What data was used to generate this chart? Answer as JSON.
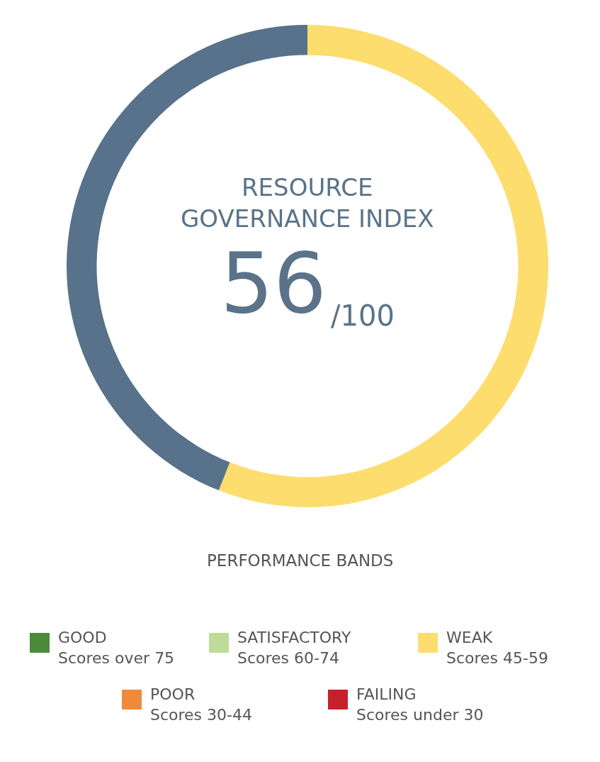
{
  "chart_data": {
    "type": "donut",
    "title": "RESOURCE\nGOVERNANCE INDEX",
    "annotations": [
      "56",
      "/100"
    ],
    "legend_title": "PERFORMANCE BANDS",
    "legend": "bottom",
    "categories": [
      "GOOD\nScores over 75",
      "SATISFACTORY\nScores 60-74",
      "WEAK\nScores 45-59",
      "POOR\nScores 30-44",
      "FAILING\nScores under 30",
      null
    ],
    "values": [
      0,
      0,
      56,
      0,
      0,
      44
    ],
    "colors": [
      "#4b8a3b",
      "#bddc97",
      "#fddd6d",
      "#f08a3b",
      "#c8202a",
      "#57728a"
    ]
  }
}
